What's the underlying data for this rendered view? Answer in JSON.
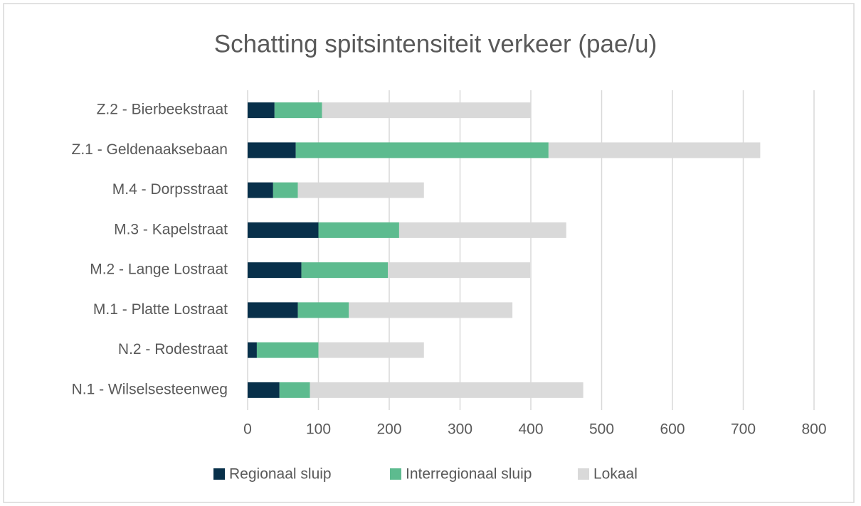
{
  "chart_data": {
    "type": "stacked_barh",
    "title": "Schatting spitsintensiteit verkeer (pae/u)",
    "categories": [
      "Z.2 - Bierbeekstraat",
      "Z.1 - Geldenaaksebaan",
      "M.4 - Dorpsstraat",
      "M.3 - Kapelstraat",
      "M.2 - Lange Lostraat",
      "M.1 - Platte Lostraat",
      "N.2 - Rodestraat",
      "N.1 - Wilselsesteenweg"
    ],
    "series": [
      {
        "name": "Regionaal sluip",
        "color": "#08304a",
        "values": [
          38,
          68,
          36,
          100,
          76,
          71,
          13,
          45
        ]
      },
      {
        "name": "Interregionaal sluip",
        "color": "#5dbb8f",
        "values": [
          67,
          357,
          35,
          114,
          122,
          72,
          87,
          43
        ]
      },
      {
        "name": "Lokaal",
        "color": "#d9d9d9",
        "values": [
          295,
          299,
          178,
          236,
          201,
          231,
          149,
          386
        ]
      }
    ],
    "xlim": [
      0,
      800
    ],
    "xticks": [
      0,
      100,
      200,
      300,
      400,
      500,
      600,
      700,
      800
    ],
    "grid": true,
    "legend": "bottom"
  }
}
